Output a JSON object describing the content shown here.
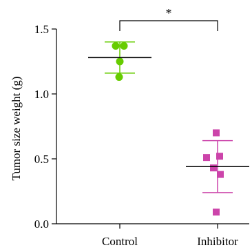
{
  "chart_data": {
    "type": "scatter",
    "ylabel": "Tumor size weight (g)",
    "ylim": [
      0.0,
      1.5
    ],
    "yticks": [
      "0.0",
      "0.5",
      "1.0",
      "1.5"
    ],
    "categories": [
      "Control",
      "Inhibitor"
    ],
    "series": [
      {
        "category": "Control",
        "marker": "circle",
        "color": "#66cc00",
        "points": [
          1.37,
          1.37,
          1.25,
          1.13
        ],
        "mean": 1.28,
        "error_upper": 1.4,
        "error_lower": 1.16
      },
      {
        "category": "Inhibitor",
        "marker": "square",
        "color": "#cc44aa",
        "points": [
          0.7,
          0.51,
          0.52,
          0.43,
          0.38,
          0.09
        ],
        "mean": 0.44,
        "error_upper": 0.64,
        "error_lower": 0.24
      }
    ],
    "significance": {
      "label": "*",
      "between": [
        "Control",
        "Inhibitor"
      ]
    },
    "grid": false,
    "legend": "none"
  }
}
